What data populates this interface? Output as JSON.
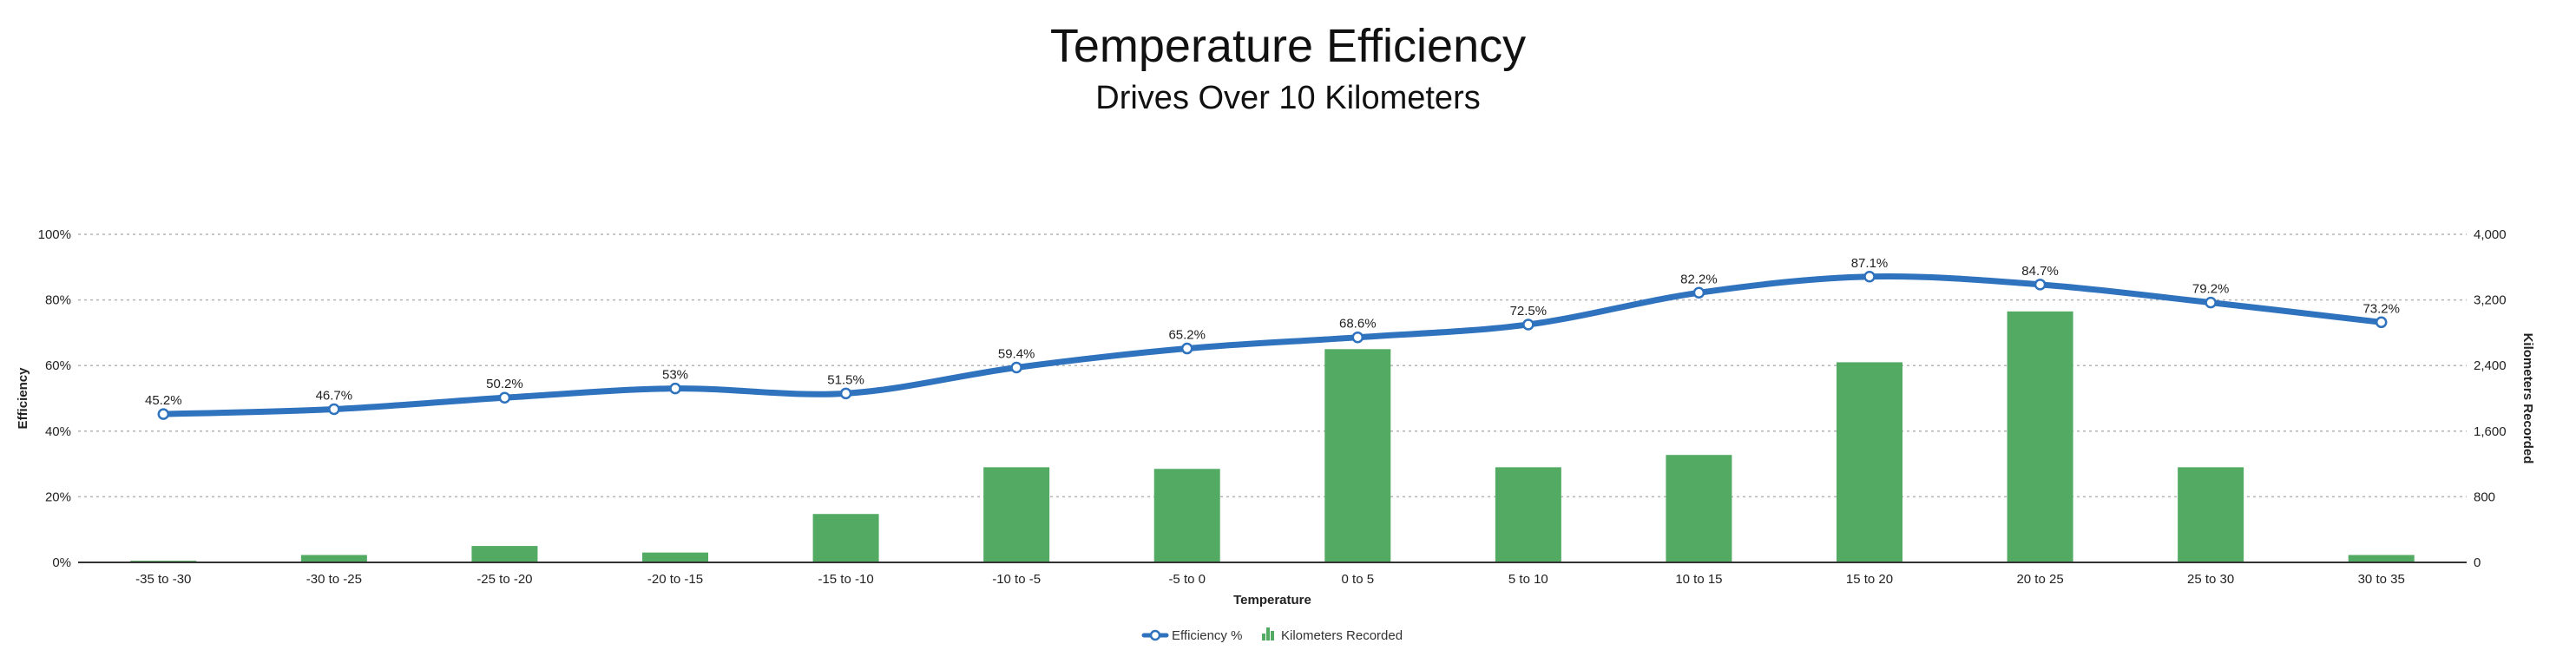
{
  "title": "Temperature Efficiency",
  "subtitle": "Drives Over 10 Kilometers",
  "chart_data": {
    "type": "bar",
    "combo": "bar+line",
    "categories": [
      "-35 to -30",
      "-30 to -25",
      "-25 to -20",
      "-20 to -15",
      "-15 to -10",
      "-10 to -5",
      "-5 to 0",
      "0 to 5",
      "5 to 10",
      "10 to 15",
      "15 to 20",
      "20 to 25",
      "25 to 30",
      "30 to 35"
    ],
    "series": [
      {
        "name": "Efficiency %",
        "type": "line",
        "axis": "left",
        "color": "#2f72bd",
        "values": [
          45.2,
          46.7,
          50.2,
          53,
          51.5,
          59.4,
          65.2,
          68.6,
          72.5,
          82.2,
          87.1,
          84.7,
          79.2,
          73.2
        ],
        "labels": [
          "45.2%",
          "46.7%",
          "50.2%",
          "53%",
          "51.5%",
          "59.4%",
          "65.2%",
          "68.6%",
          "72.5%",
          "82.2%",
          "87.1%",
          "84.7%",
          "79.2%",
          "73.2%"
        ]
      },
      {
        "name": "Kilometers Recorded",
        "type": "bar",
        "axis": "right",
        "color": "#53aa63",
        "values": [
          20,
          90,
          200,
          120,
          590,
          1160,
          1140,
          2600,
          1160,
          1310,
          2440,
          3060,
          1160,
          90
        ]
      }
    ],
    "xlabel": "Temperature",
    "ylabel": "Efficiency",
    "y2label": "Kilometers Recorded",
    "ylim": [
      0,
      100
    ],
    "y2lim": [
      0,
      4000
    ],
    "y_ticks": [
      "0%",
      "20%",
      "40%",
      "60%",
      "80%",
      "100%"
    ],
    "y2_ticks": [
      "0",
      "800",
      "1,600",
      "2,400",
      "3,200",
      "4,000"
    ],
    "grid": true,
    "legend": "bottom-center"
  }
}
